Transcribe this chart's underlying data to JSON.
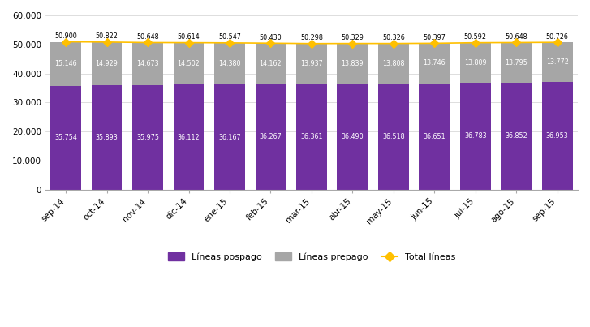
{
  "categories": [
    "sep-14",
    "oct-14",
    "nov-14",
    "dic-14",
    "ene-15",
    "feb-15",
    "mar-15",
    "abr-15",
    "may-15",
    "jun-15",
    "jul-15",
    "ago-15",
    "sep-15"
  ],
  "pospago": [
    35754,
    35893,
    35975,
    36112,
    36167,
    36267,
    36361,
    36490,
    36518,
    36651,
    36783,
    36852,
    36953
  ],
  "prepago": [
    15146,
    14929,
    14673,
    14502,
    14380,
    14162,
    13937,
    13839,
    13808,
    13746,
    13809,
    13795,
    13772
  ],
  "total": [
    50900,
    50822,
    50648,
    50614,
    50547,
    50430,
    50298,
    50329,
    50326,
    50397,
    50592,
    50648,
    50726
  ],
  "pospago_labels": [
    "35.754",
    "35.893",
    "35.975",
    "36.112",
    "36.167",
    "36.267",
    "36.361",
    "36.490",
    "36.518",
    "36.651",
    "36.783",
    "36.852",
    "36.953"
  ],
  "prepago_labels": [
    "15.146",
    "14.929",
    "14.673",
    "14.502",
    "14.380",
    "14.162",
    "13.937",
    "13.839",
    "13.808",
    "13.746",
    "13.809",
    "13.795",
    "13.772"
  ],
  "total_labels": [
    "50.900",
    "50.822",
    "50.648",
    "50.614",
    "50.547",
    "50.430",
    "50.298",
    "50.329",
    "50.326",
    "50.397",
    "50.592",
    "50.648",
    "50.726"
  ],
  "color_pospago": "#7030a0",
  "color_prepago": "#a6a6a6",
  "color_total": "#ffc000",
  "color_total_line": "#ffc000",
  "background": "#ffffff",
  "ylim": [
    0,
    60000
  ],
  "yticks": [
    0,
    10000,
    20000,
    30000,
    40000,
    50000,
    60000
  ],
  "ytick_labels": [
    "0",
    "10.000",
    "20.000",
    "30.000",
    "40.000",
    "50.000",
    "60.000"
  ],
  "legend_pospago": "Líneas pospago",
  "legend_prepago": "Líneas prepago",
  "legend_total": "Total líneas"
}
